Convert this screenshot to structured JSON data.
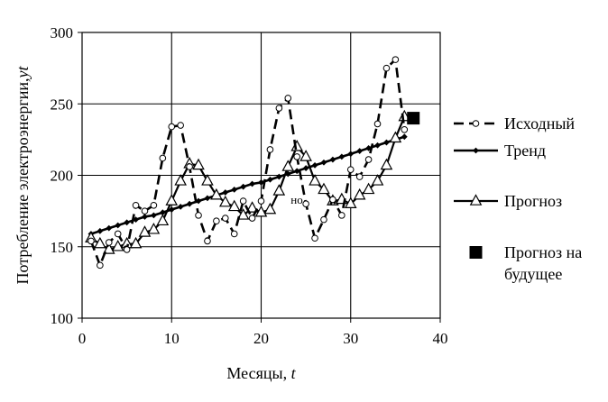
{
  "chart_data": {
    "type": "line",
    "xlabel": "Месяцы, t",
    "ylabel": "Потребление электроэнергии,yt",
    "xlim": [
      0,
      40
    ],
    "ylim": [
      100,
      300
    ],
    "x_ticks": [
      0,
      10,
      20,
      30,
      40
    ],
    "y_ticks": [
      100,
      150,
      200,
      250,
      300
    ],
    "grid": true,
    "legend_position": "right",
    "stray_text": "но",
    "series": [
      {
        "name": "Исходный",
        "style": "dashed",
        "marker": "circle",
        "x": [
          1,
          2,
          3,
          4,
          5,
          6,
          7,
          8,
          9,
          10,
          11,
          12,
          13,
          14,
          15,
          16,
          17,
          18,
          19,
          20,
          21,
          22,
          23,
          24,
          25,
          26,
          27,
          28,
          29,
          30,
          31,
          32,
          33,
          34,
          35,
          36
        ],
        "y": [
          154,
          137,
          153,
          159,
          148,
          179,
          175,
          179,
          212,
          234,
          235,
          206,
          172,
          154,
          168,
          170,
          159,
          182,
          170,
          182,
          218,
          247,
          254,
          213,
          180,
          156,
          169,
          183,
          172,
          204,
          199,
          211,
          236,
          275,
          281,
          232
        ]
      },
      {
        "name": "Тренд",
        "style": "solid",
        "marker": "diamond",
        "x": [
          1,
          2,
          3,
          4,
          5,
          6,
          7,
          8,
          9,
          10,
          11,
          12,
          13,
          14,
          15,
          16,
          17,
          18,
          19,
          20,
          21,
          22,
          23,
          24,
          25,
          26,
          27,
          28,
          29,
          30,
          31,
          32,
          33,
          34,
          35,
          36
        ],
        "y": [
          159,
          161,
          163,
          165,
          167,
          169,
          171,
          172,
          174,
          176,
          178,
          180,
          182,
          184,
          186,
          188,
          190,
          192,
          194,
          195,
          197,
          199,
          201,
          203,
          205,
          207,
          209,
          211,
          213,
          215,
          217,
          219,
          221,
          223,
          225,
          227
        ]
      },
      {
        "name": "Прогноз",
        "style": "solid",
        "marker": "triangle",
        "x": [
          1,
          2,
          3,
          4,
          5,
          6,
          7,
          8,
          9,
          10,
          11,
          12,
          13,
          14,
          15,
          16,
          17,
          18,
          19,
          20,
          21,
          22,
          23,
          24,
          25,
          26,
          27,
          28,
          29,
          30,
          31,
          32,
          33,
          34,
          35,
          36
        ],
        "y": [
          156,
          152,
          148,
          150,
          152,
          152,
          160,
          162,
          168,
          182,
          196,
          208,
          207,
          196,
          186,
          181,
          178,
          172,
          177,
          174,
          176,
          189,
          206,
          220,
          213,
          196,
          190,
          182,
          183,
          180,
          186,
          190,
          196,
          207,
          226,
          241
        ]
      },
      {
        "name": "Прогноз на будущее",
        "style": "none",
        "marker": "square",
        "x": [
          37
        ],
        "y": [
          240
        ]
      }
    ]
  }
}
